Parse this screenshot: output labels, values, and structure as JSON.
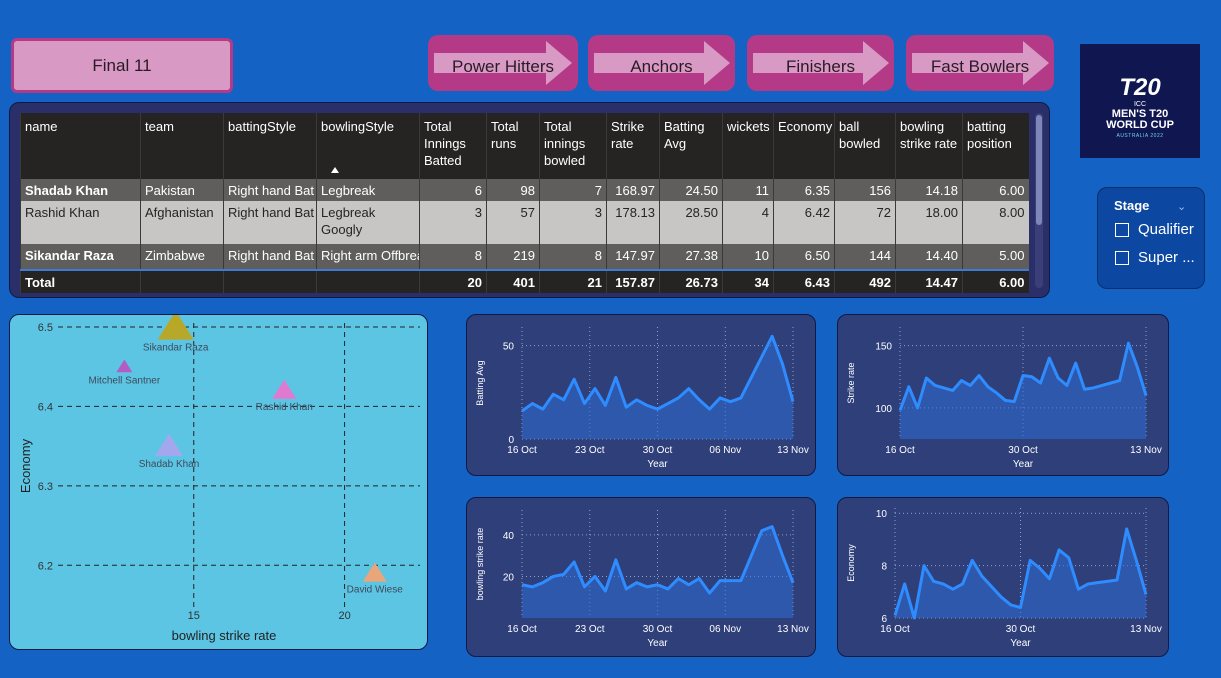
{
  "buttons": {
    "final": "Final 11",
    "nav": [
      "Power Hitters",
      "Anchors",
      "Finishers",
      "Fast Bowlers"
    ]
  },
  "logo": {
    "t20": "T20",
    "line1": "ICC",
    "line2a": "MEN'S T20",
    "line2b": "WORLD CUP",
    "line3": "AUSTRALIA 2022"
  },
  "table": {
    "headers": [
      "name",
      "team",
      "battingStyle",
      "bowlingStyle",
      "Total Innings Batted",
      "Total runs",
      "Total innings bowled",
      "Strike rate",
      "Batting Avg",
      "wickets",
      "Economy",
      "ball bowled",
      "bowling strike rate",
      "batting position"
    ],
    "rows": [
      [
        "Shadab Khan",
        "Pakistan",
        "Right hand Bat",
        "Legbreak",
        "6",
        "98",
        "7",
        "168.97",
        "24.50",
        "11",
        "6.35",
        "156",
        "14.18",
        "6.00"
      ],
      [
        "Rashid Khan",
        "Afghanistan",
        "Right hand Bat",
        "Legbreak Googly",
        "3",
        "57",
        "3",
        "178.13",
        "28.50",
        "4",
        "6.42",
        "72",
        "18.00",
        "8.00"
      ],
      [
        "Sikandar Raza",
        "Zimbabwe",
        "Right hand Bat",
        "Right arm Offbreak",
        "8",
        "219",
        "8",
        "147.97",
        "27.38",
        "10",
        "6.50",
        "144",
        "14.40",
        "5.00"
      ]
    ],
    "total": [
      "Total",
      "",
      "",
      "",
      "20",
      "401",
      "21",
      "157.87",
      "26.73",
      "34",
      "6.43",
      "492",
      "14.47",
      "6.00"
    ]
  },
  "slicer": {
    "title": "Stage",
    "options": [
      "Qualifier",
      "Super ..."
    ]
  },
  "chart_data": [
    {
      "type": "scatter",
      "xlabel": "bowling strike rate",
      "ylabel": "Economy",
      "xlim": [
        10.5,
        22.5
      ],
      "ylim": [
        6.145,
        6.505
      ],
      "xticks": [
        15,
        20
      ],
      "yticks": [
        6.2,
        6.3,
        6.4,
        6.5
      ],
      "points": [
        {
          "label": "Sikandar Raza",
          "x": 14.4,
          "y": 6.5,
          "color": "#b8a82a",
          "size": 18
        },
        {
          "label": "Mitchell Santner",
          "x": 12.7,
          "y": 6.45,
          "color": "#b45cc4",
          "size": 8
        },
        {
          "label": "Rashid Khan",
          "x": 18.0,
          "y": 6.42,
          "color": "#e07ad0",
          "size": 12
        },
        {
          "label": "Shadab Khan",
          "x": 14.18,
          "y": 6.35,
          "color": "#a3a8ee",
          "size": 14
        },
        {
          "label": "David Wiese",
          "x": 21.0,
          "y": 6.19,
          "color": "#e8a67a",
          "size": 12
        }
      ]
    },
    {
      "type": "area",
      "xlabel": "Year",
      "ylabel": "Batting Avg",
      "xticks": [
        "16 Oct",
        "23 Oct",
        "30 Oct",
        "06 Nov",
        "13 Nov"
      ],
      "yticks": [
        0,
        50
      ],
      "ylim": [
        0,
        60
      ],
      "values": [
        15,
        19,
        16,
        24,
        21,
        32,
        19,
        27,
        18,
        33,
        17,
        21,
        18,
        16,
        19,
        22,
        27,
        21,
        16,
        22,
        20,
        22,
        33,
        44,
        55,
        40,
        20
      ]
    },
    {
      "type": "area",
      "xlabel": "Year",
      "ylabel": "Strike rate",
      "xticks": [
        "16 Oct",
        "30 Oct",
        "13 Nov"
      ],
      "yticks": [
        100,
        150
      ],
      "ylim": [
        75,
        165
      ],
      "values": [
        98,
        117,
        100,
        124,
        118,
        116,
        114,
        122,
        118,
        126,
        117,
        112,
        106,
        105,
        126,
        125,
        120,
        140,
        124,
        118,
        136,
        115,
        116,
        118,
        120,
        122,
        152,
        133,
        110
      ]
    },
    {
      "type": "area",
      "xlabel": "Year",
      "ylabel": "bowling strike rate",
      "xticks": [
        "16 Oct",
        "23 Oct",
        "30 Oct",
        "06 Nov",
        "13 Nov"
      ],
      "yticks": [
        20,
        40
      ],
      "ylim": [
        0,
        52
      ],
      "values": [
        16,
        15,
        17,
        20,
        21,
        27,
        15,
        20,
        13,
        28,
        14,
        17,
        15,
        16,
        14,
        19,
        16,
        19,
        12,
        18,
        18,
        18,
        30,
        42,
        44,
        30,
        17
      ]
    },
    {
      "type": "area",
      "xlabel": "Year",
      "ylabel": "Economy",
      "xticks": [
        "16 Oct",
        "30 Oct",
        "13 Nov"
      ],
      "yticks": [
        6,
        8,
        10
      ],
      "ylim": [
        6,
        10.2
      ],
      "values": [
        6.1,
        7.3,
        6.0,
        8.0,
        7.4,
        7.3,
        7.1,
        7.3,
        8.2,
        7.6,
        7.2,
        6.8,
        6.5,
        6.4,
        8.2,
        7.9,
        7.5,
        8.6,
        8.3,
        7.1,
        7.3,
        7.35,
        7.4,
        7.45,
        9.4,
        8.2,
        6.9
      ]
    }
  ]
}
